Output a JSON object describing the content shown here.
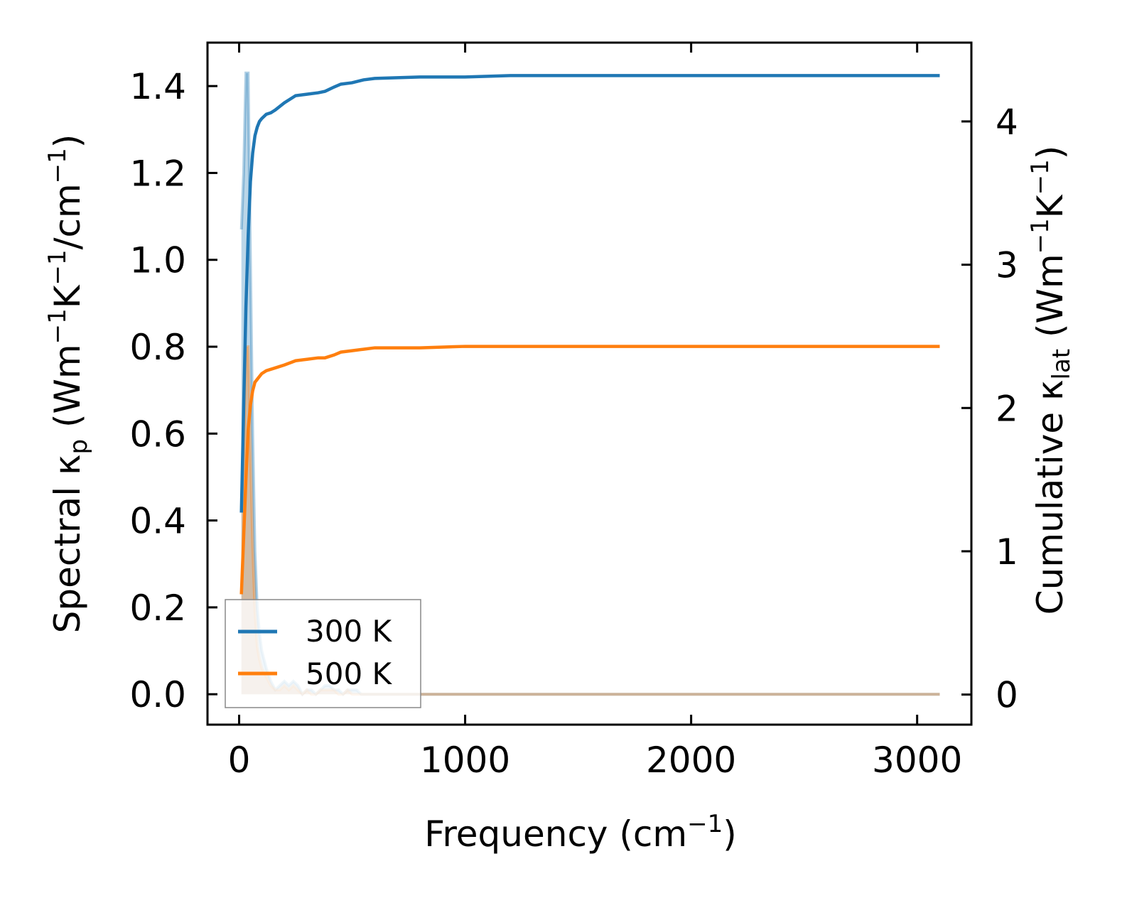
{
  "chart_data": {
    "type": "line",
    "xlabel": "Frequency (cm",
    "xlabel_sup": "−1",
    "xlabel_end": ")",
    "ylabel_left": {
      "prefix": "Spectral κ",
      "sub": "p",
      "mid1": " (Wm",
      "sup1": "−1",
      "mid2": "K",
      "sup2": "−1",
      "mid3": "/cm",
      "sup3": "−1",
      "end": ")"
    },
    "ylabel_right": {
      "prefix": "Cumulative κ",
      "sub": "lat",
      "mid1": " (Wm",
      "sup1": "−1",
      "mid2": "K",
      "sup2": "−1",
      "end": ")"
    },
    "xlim": [
      -140,
      3240
    ],
    "ylim_left": [
      -0.07,
      1.5
    ],
    "ylim_right": [
      -0.21,
      4.55
    ],
    "x_ticks": [
      0,
      1000,
      2000,
      3000
    ],
    "x_tick_labels": [
      "0",
      "1000",
      "2000",
      "3000"
    ],
    "y_left_ticks": [
      0.0,
      0.2,
      0.4,
      0.6,
      0.8,
      1.0,
      1.2,
      1.4
    ],
    "y_left_tick_labels": [
      "0.0",
      "0.2",
      "0.4",
      "0.6",
      "0.8",
      "1.0",
      "1.2",
      "1.4"
    ],
    "y_right_ticks": [
      0,
      1,
      2,
      3,
      4
    ],
    "y_right_tick_labels": [
      "0",
      "1",
      "2",
      "3",
      "4"
    ],
    "legend_position": "lower-left",
    "series": [
      {
        "name": "300 K",
        "color": "#1f77b4",
        "cumulative_axis": "right",
        "cumulative": {
          "x": [
            10,
            20,
            30,
            40,
            50,
            60,
            70,
            80,
            90,
            100,
            120,
            140,
            160,
            200,
            250,
            300,
            350,
            380,
            420,
            450,
            500,
            550,
            600,
            800,
            1000,
            1200,
            1500,
            2000,
            2500,
            3100
          ],
          "y": [
            1.27,
            2.0,
            2.7,
            3.2,
            3.58,
            3.78,
            3.9,
            3.96,
            4.0,
            4.02,
            4.05,
            4.06,
            4.08,
            4.13,
            4.18,
            4.19,
            4.2,
            4.21,
            4.24,
            4.26,
            4.27,
            4.29,
            4.3,
            4.31,
            4.31,
            4.32,
            4.32,
            4.32,
            4.32,
            4.32
          ]
        },
        "spectral": {
          "x": [
            10,
            20,
            30,
            40,
            50,
            60,
            70,
            80,
            90,
            100,
            110,
            120,
            140,
            160,
            180,
            200,
            220,
            240,
            260,
            280,
            300,
            320,
            340,
            360,
            380,
            400,
            420,
            440,
            460,
            480,
            500,
            520,
            540,
            560,
            600,
            700,
            800,
            1000,
            1500,
            2000,
            2500,
            3100
          ],
          "y": [
            1.07,
            1.2,
            1.43,
            1.43,
            1.0,
            0.6,
            0.33,
            0.2,
            0.14,
            0.1,
            0.08,
            0.06,
            0.03,
            0.01,
            0.02,
            0.03,
            0.02,
            0.03,
            0.02,
            0.0,
            0.01,
            0.01,
            0.0,
            0.01,
            0.02,
            0.02,
            0.01,
            0.01,
            0.0,
            0.01,
            0.01,
            0.01,
            0.0,
            0.0,
            0.0,
            0.0,
            0.0,
            0.0,
            0.0,
            0.0,
            0.0,
            0.0
          ]
        }
      },
      {
        "name": "500 K",
        "color": "#ff7f0e",
        "cumulative_axis": "right",
        "cumulative": {
          "x": [
            10,
            20,
            30,
            40,
            50,
            60,
            70,
            80,
            90,
            100,
            120,
            140,
            160,
            200,
            250,
            300,
            350,
            380,
            420,
            450,
            500,
            550,
            600,
            800,
            1000,
            1200,
            1500,
            2000,
            2500,
            3100
          ],
          "y": [
            0.7,
            1.1,
            1.5,
            1.85,
            2.02,
            2.12,
            2.18,
            2.2,
            2.22,
            2.24,
            2.26,
            2.27,
            2.28,
            2.3,
            2.33,
            2.34,
            2.35,
            2.35,
            2.37,
            2.39,
            2.4,
            2.41,
            2.42,
            2.42,
            2.43,
            2.43,
            2.43,
            2.43,
            2.43,
            2.43
          ]
        },
        "spectral": {
          "x": [
            10,
            20,
            30,
            40,
            50,
            60,
            70,
            80,
            90,
            100,
            110,
            120,
            140,
            160,
            180,
            200,
            220,
            240,
            260,
            280,
            300,
            320,
            340,
            360,
            380,
            400,
            420,
            440,
            460,
            480,
            500,
            520,
            540,
            560,
            600,
            700,
            800,
            1000,
            1500,
            2000,
            2500,
            3100
          ],
          "y": [
            0.43,
            0.55,
            0.8,
            0.8,
            0.56,
            0.34,
            0.19,
            0.11,
            0.08,
            0.06,
            0.05,
            0.04,
            0.02,
            0.01,
            0.01,
            0.02,
            0.01,
            0.02,
            0.01,
            0.0,
            0.01,
            0.0,
            0.0,
            0.01,
            0.01,
            0.01,
            0.01,
            0.0,
            0.0,
            0.01,
            0.0,
            0.0,
            0.0,
            0.0,
            0.0,
            0.0,
            0.0,
            0.0,
            0.0,
            0.0,
            0.0,
            0.0
          ]
        }
      }
    ]
  }
}
